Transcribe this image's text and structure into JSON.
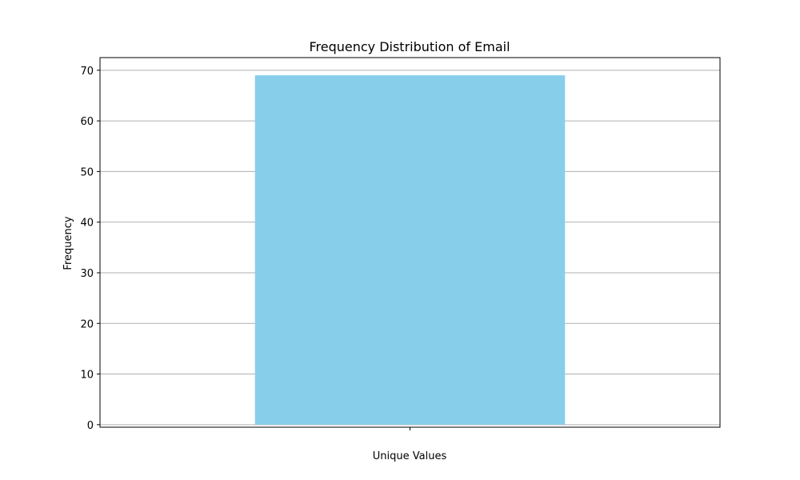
{
  "chart_data": {
    "type": "bar",
    "title": "Frequency Distribution of Email",
    "xlabel": "Unique Values",
    "ylabel": "Frequency",
    "categories": [
      ""
    ],
    "values": [
      69
    ],
    "ylim": [
      -0.5,
      72.5
    ],
    "yticks": [
      0,
      10,
      20,
      30,
      40,
      50,
      60,
      70
    ],
    "grid": "horizontal",
    "bar_color": "#87ceeb",
    "grid_color": "#b0b0b0"
  }
}
